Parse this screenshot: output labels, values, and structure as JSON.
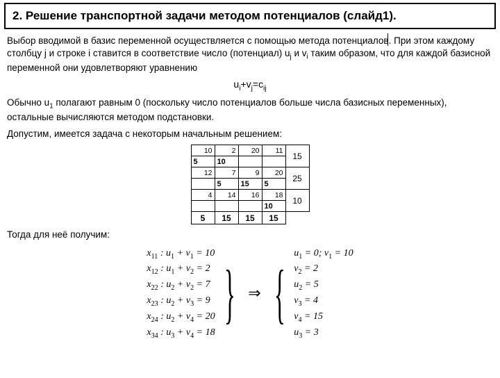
{
  "title": "2. Решение транспортной задачи методом потенциалов (слайд1).",
  "para1_a": "Выбор вводимой в базис переменной осуществляется с помощью метода потенциалов",
  "para1_b": "При этом каждому столбцу j и строке i ставится в соответствие число (потенциал) u",
  "para1_c": " и v",
  "para1_d": " таким образом, что для каждой базисной переменной они удовлетворяют уравнению",
  "center_eq_l": "u",
  "center_eq_m": "+v",
  "center_eq_r": "=c",
  "para2_a": "Обычно u",
  "para2_b": " полагают равным 0 (поскольку число потенциалов больше числа базисных переменных), остальные вычисляются методом подстановки.",
  "para3": "Допустим, имеется задача с некоторым начальным решением:",
  "para4": "Тогда для неё получим:",
  "table": {
    "costs": [
      [
        "10",
        "2",
        "20",
        "11"
      ],
      [
        "12",
        "7",
        "9",
        "20"
      ],
      [
        "4",
        "14",
        "16",
        "18"
      ]
    ],
    "alloc": [
      [
        "5",
        "10",
        "",
        ""
      ],
      [
        "",
        "5",
        "15",
        "5"
      ],
      [
        "",
        "",
        "",
        "10"
      ]
    ],
    "supply": [
      "15",
      "25",
      "10"
    ],
    "demand": [
      "5",
      "15",
      "15",
      "15"
    ]
  },
  "eqs_left": [
    {
      "x": "x",
      "xs": "11",
      "t": " : u",
      "us": "1",
      "m": " + v",
      "vs": "1",
      "r": " = 10"
    },
    {
      "x": "x",
      "xs": "12",
      "t": " : u",
      "us": "1",
      "m": " + v",
      "vs": "2",
      "r": " = 2"
    },
    {
      "x": "x",
      "xs": "22",
      "t": " : u",
      "us": "2",
      "m": " + v",
      "vs": "2",
      "r": " = 7"
    },
    {
      "x": "x",
      "xs": "23",
      "t": " : u",
      "us": "2",
      "m": " + v",
      "vs": "3",
      "r": " = 9"
    },
    {
      "x": "x",
      "xs": "24",
      "t": " : u",
      "us": "2",
      "m": " + v",
      "vs": "4",
      "r": " = 20"
    },
    {
      "x": "x",
      "xs": "34",
      "t": " : u",
      "us": "3",
      "m": " + v",
      "vs": "4",
      "r": " = 18"
    }
  ],
  "eqs_right": [
    {
      "l": "u",
      "ls": "1",
      "m": " = 0; v",
      "ms": "1",
      "r": " = 10"
    },
    {
      "l": "v",
      "ls": "2",
      "m": " = 2",
      "ms": "",
      "r": ""
    },
    {
      "l": "u",
      "ls": "2",
      "m": " = 5",
      "ms": "",
      "r": ""
    },
    {
      "l": "v",
      "ls": "3",
      "m": " = 4",
      "ms": "",
      "r": ""
    },
    {
      "l": "v",
      "ls": "4",
      "m": " = 15",
      "ms": "",
      "r": ""
    },
    {
      "l": "u",
      "ls": "3",
      "m": " = 3",
      "ms": "",
      "r": ""
    }
  ],
  "colors": {
    "border": "#000000",
    "bg": "#ffffff"
  }
}
